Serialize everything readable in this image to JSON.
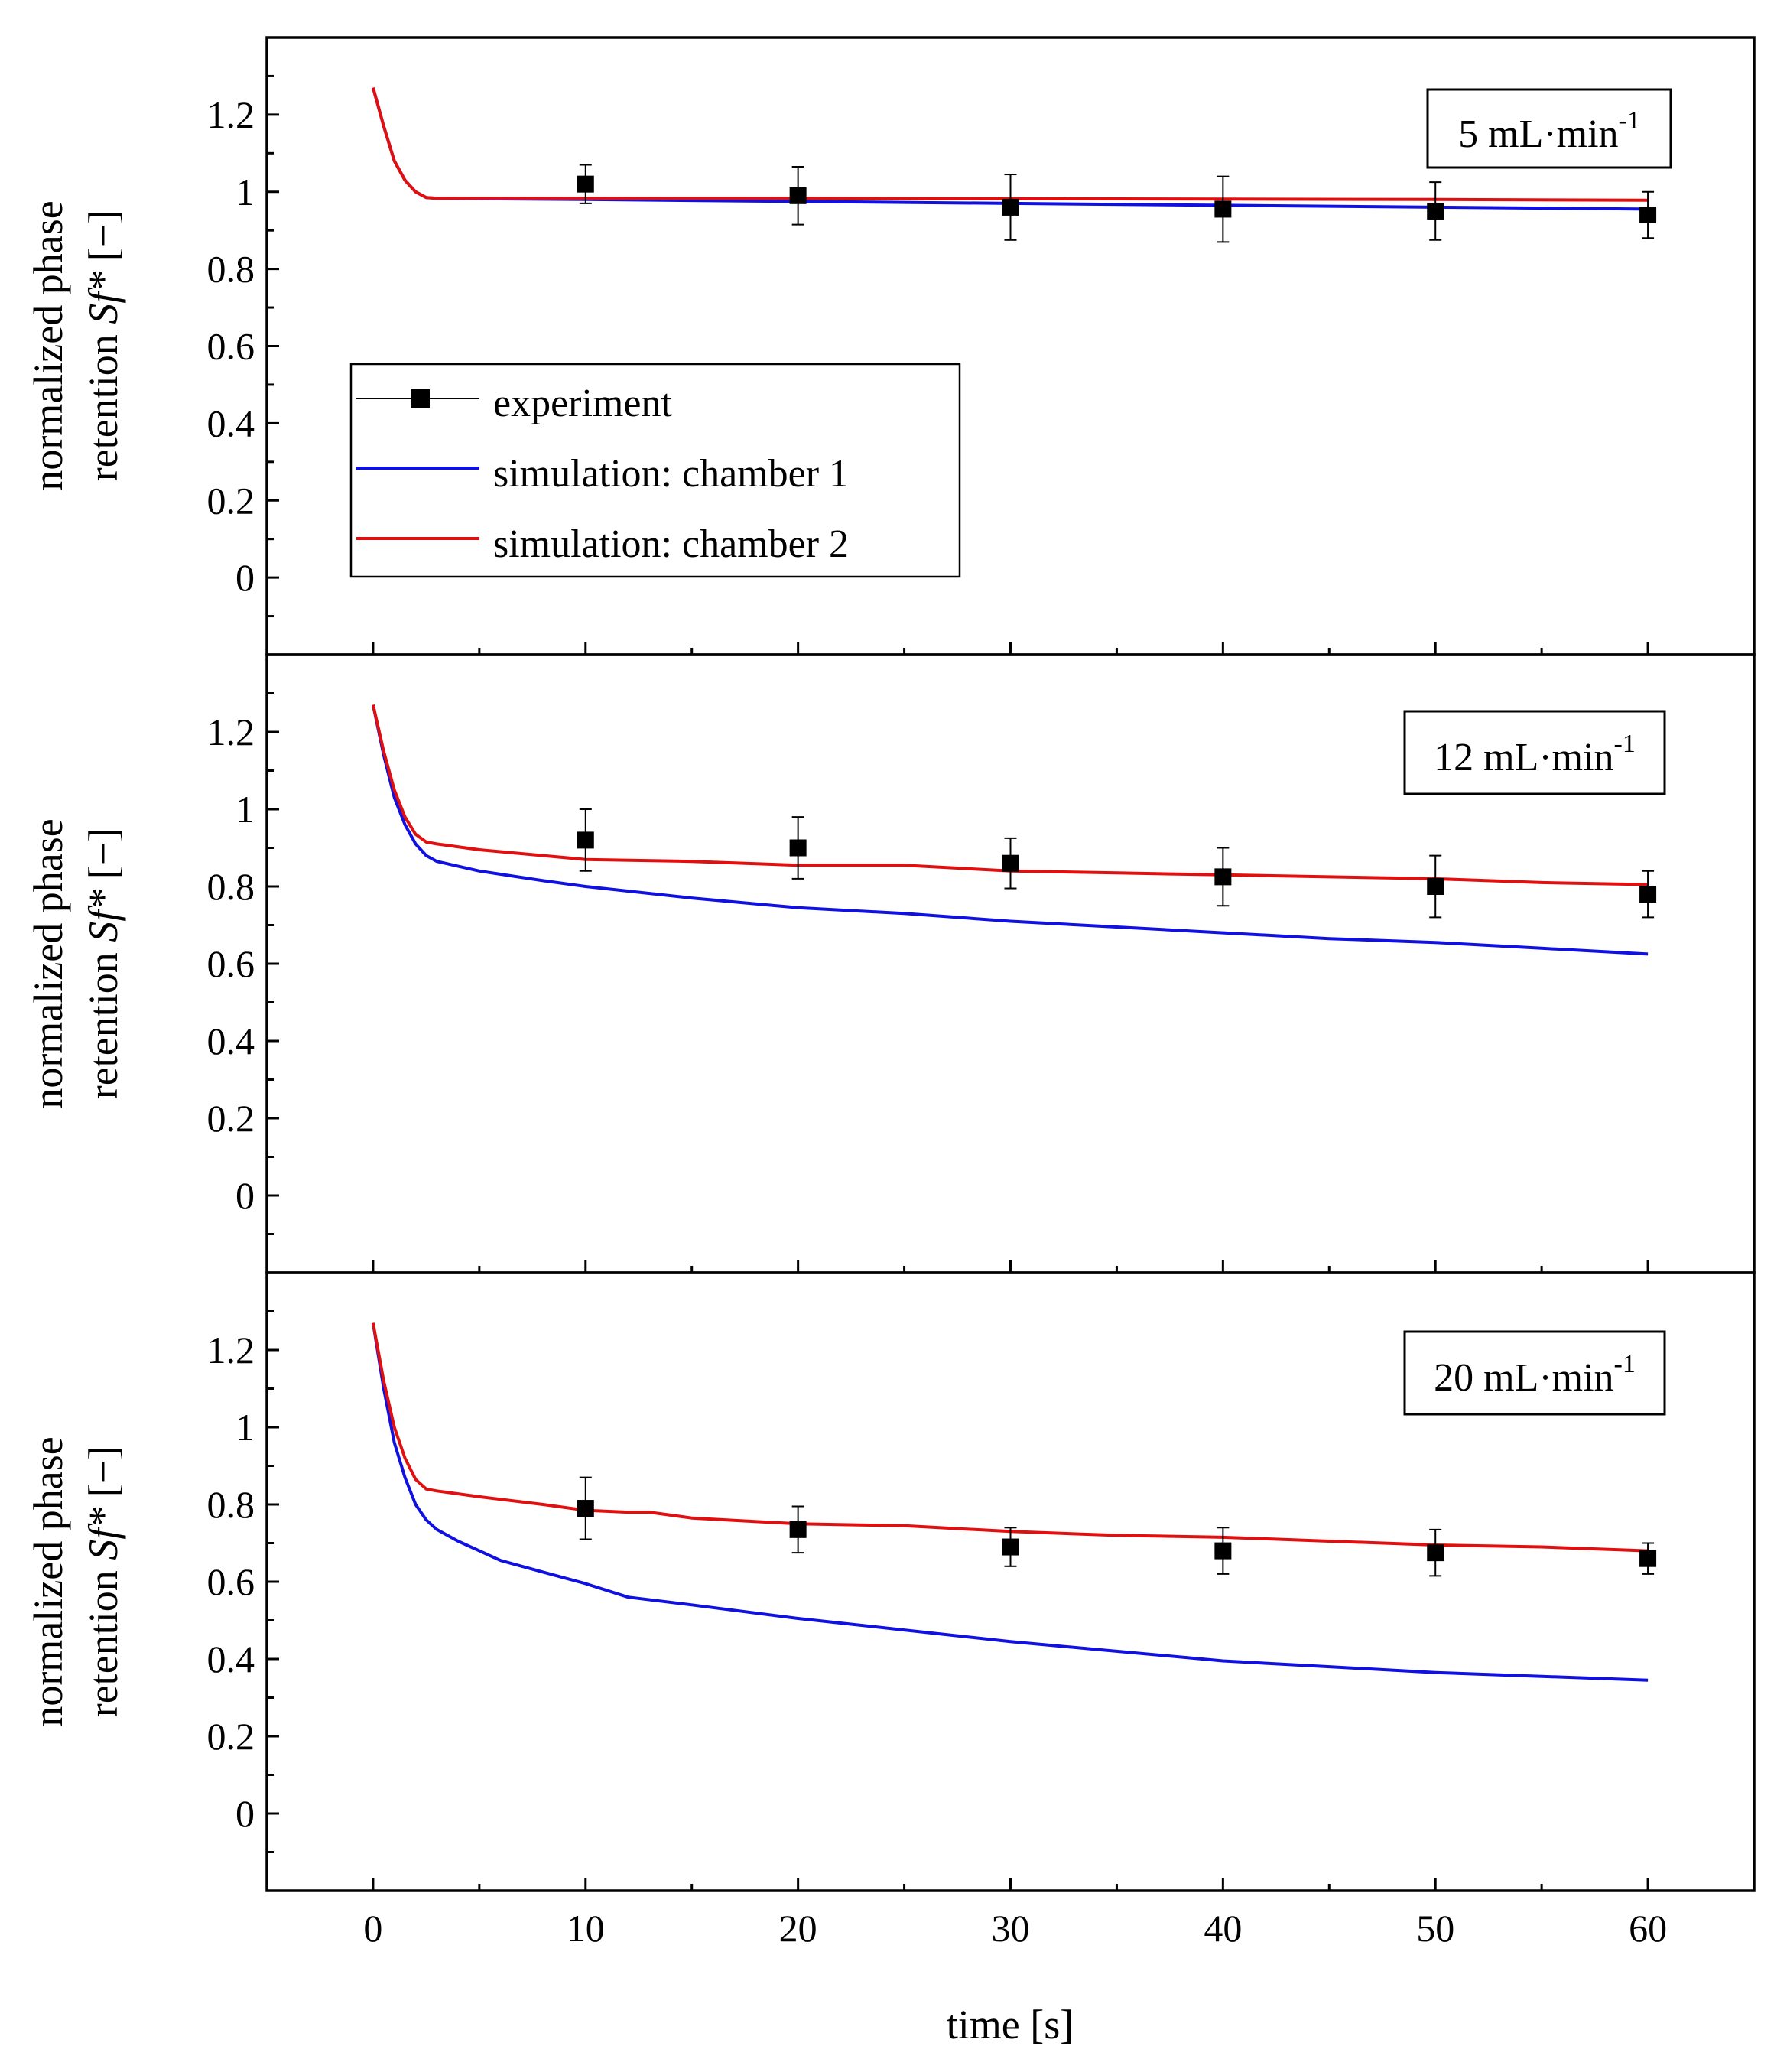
{
  "x_axis_label": "time [s]",
  "y_axis_label_line1": "normalized phase",
  "y_axis_label_line2_prefix": "retention ",
  "y_axis_label_symbol": "Sf*",
  "y_axis_label_suffix": " [−]",
  "legend": {
    "experiment": "experiment",
    "chamber1": "simulation: chamber 1",
    "chamber2": "simulation: chamber 2"
  },
  "colors": {
    "chamber1": "#1010e0",
    "chamber2": "#e01010",
    "experiment": "#000000"
  },
  "chart_data": [
    {
      "type": "line",
      "flow_rate_label": "5 mL·min",
      "flow_rate_exponent": "-1",
      "xlabel": "time [s]",
      "ylabel": "normalized phase retention Sf* [−]",
      "xlim": [
        -5,
        65
      ],
      "ylim": [
        -0.2,
        1.4
      ],
      "x_ticks": [
        "0",
        "10",
        "20",
        "30",
        "40",
        "50",
        "60"
      ],
      "y_ticks": [
        "0",
        "0.2",
        "0.4",
        "0.6",
        "0.8",
        "1",
        "1.2"
      ],
      "series": [
        {
          "name": "experiment",
          "x": [
            10,
            20,
            30,
            40,
            50,
            60
          ],
          "y": [
            1.02,
            0.99,
            0.96,
            0.955,
            0.95,
            0.94
          ],
          "yerr": [
            0.05,
            0.075,
            0.085,
            0.085,
            0.075,
            0.06
          ]
        },
        {
          "name": "simulation: chamber 1",
          "x": [
            0,
            0.5,
            1,
            1.5,
            2,
            2.5,
            3,
            5,
            10,
            20,
            30,
            40,
            50,
            60
          ],
          "y": [
            1.27,
            1.17,
            1.08,
            1.03,
            1.0,
            0.985,
            0.983,
            0.982,
            0.98,
            0.975,
            0.97,
            0.965,
            0.96,
            0.955
          ]
        },
        {
          "name": "simulation: chamber 2",
          "x": [
            0,
            0.5,
            1,
            1.5,
            2,
            2.5,
            3,
            5,
            10,
            20,
            30,
            40,
            50,
            60
          ],
          "y": [
            1.27,
            1.17,
            1.08,
            1.03,
            1.0,
            0.985,
            0.983,
            0.983,
            0.983,
            0.983,
            0.982,
            0.981,
            0.98,
            0.978
          ]
        }
      ]
    },
    {
      "type": "line",
      "flow_rate_label": "12 mL·min",
      "flow_rate_exponent": "-1",
      "xlabel": "time [s]",
      "ylabel": "normalized phase retention Sf* [−]",
      "xlim": [
        -5,
        65
      ],
      "ylim": [
        -0.2,
        1.4
      ],
      "x_ticks": [
        "0",
        "10",
        "20",
        "30",
        "40",
        "50",
        "60"
      ],
      "y_ticks": [
        "0",
        "0.2",
        "0.4",
        "0.6",
        "0.8",
        "1",
        "1.2"
      ],
      "series": [
        {
          "name": "experiment",
          "x": [
            10,
            20,
            30,
            40,
            50,
            60
          ],
          "y": [
            0.92,
            0.9,
            0.86,
            0.825,
            0.8,
            0.78
          ],
          "yerr": [
            0.08,
            0.08,
            0.065,
            0.075,
            0.08,
            0.06
          ]
        },
        {
          "name": "simulation: chamber 1",
          "x": [
            0,
            0.5,
            1,
            1.5,
            2,
            2.5,
            3,
            5,
            8,
            10,
            15,
            20,
            25,
            30,
            35,
            40,
            45,
            50,
            55,
            60
          ],
          "y": [
            1.27,
            1.14,
            1.03,
            0.96,
            0.91,
            0.88,
            0.865,
            0.84,
            0.815,
            0.8,
            0.77,
            0.745,
            0.73,
            0.71,
            0.695,
            0.68,
            0.665,
            0.655,
            0.64,
            0.625
          ]
        },
        {
          "name": "simulation: chamber 2",
          "x": [
            0,
            0.5,
            1,
            1.5,
            2,
            2.5,
            3,
            5,
            8,
            10,
            15,
            20,
            25,
            30,
            35,
            40,
            45,
            50,
            55,
            60
          ],
          "y": [
            1.27,
            1.15,
            1.05,
            0.98,
            0.935,
            0.915,
            0.91,
            0.895,
            0.88,
            0.87,
            0.865,
            0.855,
            0.855,
            0.84,
            0.835,
            0.83,
            0.825,
            0.82,
            0.81,
            0.805
          ]
        }
      ]
    },
    {
      "type": "line",
      "flow_rate_label": "20 mL·min",
      "flow_rate_exponent": "-1",
      "xlabel": "time [s]",
      "ylabel": "normalized phase retention Sf* [−]",
      "xlim": [
        -5,
        65
      ],
      "ylim": [
        -0.2,
        1.4
      ],
      "x_ticks": [
        "0",
        "10",
        "20",
        "30",
        "40",
        "50",
        "60"
      ],
      "y_ticks": [
        "0",
        "0.2",
        "0.4",
        "0.6",
        "0.8",
        "1",
        "1.2"
      ],
      "series": [
        {
          "name": "experiment",
          "x": [
            10,
            20,
            30,
            40,
            50,
            60
          ],
          "y": [
            0.79,
            0.735,
            0.69,
            0.68,
            0.675,
            0.66
          ],
          "yerr": [
            0.08,
            0.06,
            0.05,
            0.06,
            0.06,
            0.04
          ]
        },
        {
          "name": "simulation: chamber 1",
          "x": [
            0,
            0.5,
            1,
            1.5,
            2,
            2.5,
            3,
            4,
            5,
            6,
            8,
            10,
            12,
            15,
            20,
            25,
            30,
            35,
            40,
            45,
            50,
            55,
            60
          ],
          "y": [
            1.27,
            1.1,
            0.96,
            0.87,
            0.8,
            0.76,
            0.735,
            0.705,
            0.68,
            0.655,
            0.625,
            0.595,
            0.56,
            0.54,
            0.505,
            0.475,
            0.445,
            0.42,
            0.395,
            0.38,
            0.365,
            0.355,
            0.345
          ]
        },
        {
          "name": "simulation: chamber 2",
          "x": [
            0,
            0.5,
            1,
            1.5,
            2,
            2.5,
            3,
            5,
            8,
            10,
            12,
            13,
            15,
            20,
            25,
            30,
            35,
            40,
            45,
            50,
            55,
            60
          ],
          "y": [
            1.27,
            1.12,
            1.0,
            0.92,
            0.865,
            0.84,
            0.835,
            0.82,
            0.8,
            0.785,
            0.78,
            0.78,
            0.765,
            0.75,
            0.745,
            0.73,
            0.72,
            0.715,
            0.705,
            0.695,
            0.69,
            0.68
          ]
        }
      ]
    }
  ]
}
